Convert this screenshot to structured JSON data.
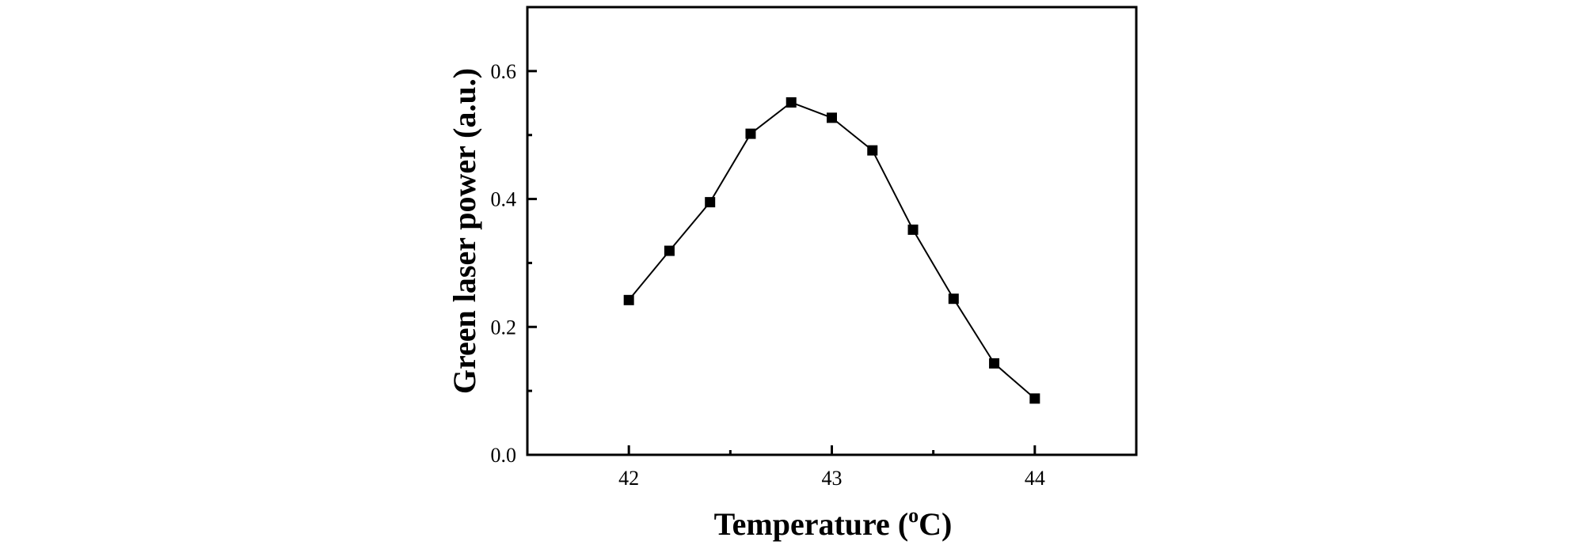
{
  "chart_data": {
    "type": "line",
    "title": "",
    "xlabel": "Temperature (",
    "xlabel_sup": "o",
    "xlabel_unit": "C)",
    "ylabel": "Green laser power (a.u.)",
    "xlim": [
      41.5,
      44.5
    ],
    "ylim": [
      0.0,
      0.7
    ],
    "x_ticks": [
      42,
      43,
      44
    ],
    "x_tick_labels": [
      "42",
      "43",
      "44"
    ],
    "x_minor_ticks": [
      42.5,
      43.5
    ],
    "y_ticks": [
      0.0,
      0.2,
      0.4,
      0.6
    ],
    "y_tick_labels": [
      "0.0",
      "0.2",
      "0.4",
      "0.6"
    ],
    "y_minor_ticks": [
      0.1,
      0.3,
      0.5
    ],
    "grid": false,
    "marker": "square",
    "series": [
      {
        "name": "Green laser power",
        "color": "#000000",
        "x": [
          42.0,
          42.2,
          42.4,
          42.6,
          42.8,
          43.0,
          43.2,
          43.4,
          43.6,
          43.8,
          44.0
        ],
        "y": [
          0.242,
          0.319,
          0.395,
          0.502,
          0.551,
          0.527,
          0.476,
          0.352,
          0.244,
          0.143,
          0.088
        ]
      }
    ]
  }
}
